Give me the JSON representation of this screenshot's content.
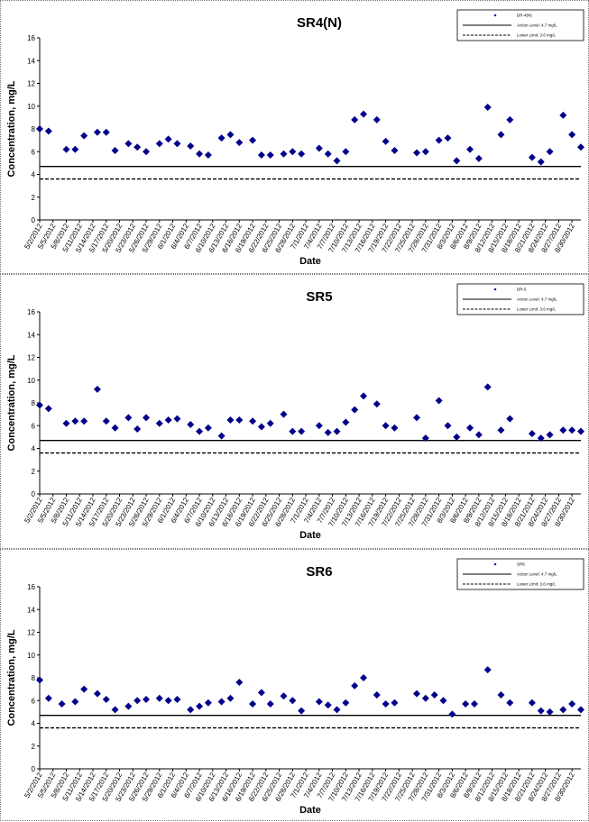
{
  "chart_data": [
    {
      "type": "scatter",
      "title": "SR4(N)",
      "xlabel": "Date",
      "ylabel": "Concentration, mg/L",
      "ylim": [
        0,
        16
      ],
      "yticks": [
        0,
        2,
        4,
        6,
        8,
        10,
        12,
        14,
        16
      ],
      "x_tick_labels": [
        "5/2/2012",
        "5/5/2012",
        "5/8/2012",
        "5/11/2012",
        "5/14/2012",
        "5/17/2012",
        "5/20/2012",
        "5/23/2012",
        "5/26/2012",
        "5/29/2012",
        "6/1/2012",
        "6/4/2012",
        "6/7/2012",
        "6/10/2012",
        "6/13/2012",
        "6/16/2012",
        "6/19/2012",
        "6/22/2012",
        "6/25/2012",
        "6/28/2012",
        "7/1/2012",
        "7/4/2012",
        "7/7/2012",
        "7/10/2012",
        "7/13/2012",
        "7/16/2012",
        "7/19/2012",
        "7/22/2012",
        "7/25/2012",
        "7/28/2012",
        "7/31/2012",
        "8/3/2012",
        "8/6/2012",
        "8/9/2012",
        "8/12/2012",
        "8/15/2012",
        "8/18/2012",
        "8/21/2012",
        "8/24/2012",
        "8/27/2012",
        "8/30/2012"
      ],
      "xlim": [
        "5/2/2012",
        "9/1/2012"
      ],
      "grid": false,
      "legend_position": "top-right",
      "legend": [
        {
          "label": "DR-4(N)",
          "style": "marker"
        },
        {
          "label": "Action Level: 4.7 mg/L",
          "style": "solid"
        },
        {
          "label": "Lower Limit: 3.6 mg/L",
          "style": "dashed"
        }
      ],
      "reference_lines": [
        {
          "label": "Action Level: 4.7 mg/L",
          "value": 4.7,
          "style": "solid"
        },
        {
          "label": "Lower Limit: 3.6 mg/L",
          "value": 3.6,
          "style": "dashed"
        }
      ],
      "series": [
        {
          "name": "DR-4(N)",
          "color": "#00008b",
          "x": [
            "5/2/2012",
            "5/4/2012",
            "5/8/2012",
            "5/10/2012",
            "5/12/2012",
            "5/15/2012",
            "5/17/2012",
            "5/19/2012",
            "5/22/2012",
            "5/24/2012",
            "5/26/2012",
            "5/29/2012",
            "5/31/2012",
            "6/2/2012",
            "6/5/2012",
            "6/7/2012",
            "6/9/2012",
            "6/12/2012",
            "6/14/2012",
            "6/16/2012",
            "6/19/2012",
            "6/21/2012",
            "6/23/2012",
            "6/26/2012",
            "6/28/2012",
            "6/30/2012",
            "7/4/2012",
            "7/6/2012",
            "7/8/2012",
            "7/10/2012",
            "7/12/2012",
            "7/14/2012",
            "7/17/2012",
            "7/19/2012",
            "7/21/2012",
            "7/26/2012",
            "7/28/2012",
            "7/31/2012",
            "8/2/2012",
            "8/4/2012",
            "8/7/2012",
            "8/9/2012",
            "8/11/2012",
            "8/14/2012",
            "8/16/2012",
            "8/21/2012",
            "8/23/2012",
            "8/25/2012",
            "8/28/2012",
            "8/30/2012",
            "9/1/2012"
          ],
          "y": [
            8.0,
            7.8,
            6.2,
            6.2,
            7.4,
            7.7,
            7.7,
            6.1,
            6.7,
            6.4,
            6.0,
            6.7,
            7.1,
            6.7,
            6.5,
            5.8,
            5.7,
            7.2,
            7.5,
            6.8,
            7.0,
            5.7,
            5.7,
            5.8,
            6.0,
            5.8,
            6.3,
            5.8,
            5.2,
            6.0,
            8.8,
            9.3,
            8.8,
            6.9,
            6.1,
            5.9,
            6.0,
            7.0,
            7.2,
            5.2,
            6.2,
            5.4,
            9.9,
            7.5,
            8.8,
            5.5,
            5.1,
            6.0,
            9.2,
            7.5,
            6.4
          ]
        }
      ]
    },
    {
      "type": "scatter",
      "title": "SR5",
      "xlabel": "Date",
      "ylabel": "Concentration, mg/L",
      "ylim": [
        0,
        16
      ],
      "yticks": [
        0,
        2,
        4,
        6,
        8,
        10,
        12,
        14,
        16
      ],
      "x_tick_labels": [
        "5/2/2012",
        "5/5/2012",
        "5/8/2012",
        "5/11/2012",
        "5/14/2012",
        "5/17/2012",
        "5/20/2012",
        "5/23/2012",
        "5/26/2012",
        "5/29/2012",
        "6/1/2012",
        "6/4/2012",
        "6/7/2012",
        "6/10/2012",
        "6/13/2012",
        "6/16/2012",
        "6/19/2012",
        "6/22/2012",
        "6/25/2012",
        "6/28/2012",
        "7/1/2012",
        "7/4/2012",
        "7/7/2012",
        "7/10/2012",
        "7/13/2012",
        "7/16/2012",
        "7/19/2012",
        "7/22/2012",
        "7/25/2012",
        "7/28/2012",
        "7/31/2012",
        "8/3/2012",
        "8/6/2012",
        "8/9/2012",
        "8/12/2012",
        "8/15/2012",
        "8/18/2012",
        "8/21/2012",
        "8/24/2012",
        "8/27/2012",
        "8/30/2012"
      ],
      "xlim": [
        "5/2/2012",
        "9/1/2012"
      ],
      "grid": false,
      "legend_position": "top-right",
      "legend": [
        {
          "label": "DR-5",
          "style": "marker"
        },
        {
          "label": "Action Level: 4.7 mg/L",
          "style": "solid"
        },
        {
          "label": "Lower Limit: 3.6 mg/L",
          "style": "dashed"
        }
      ],
      "reference_lines": [
        {
          "label": "Action Level: 4.7 mg/L",
          "value": 4.7,
          "style": "solid"
        },
        {
          "label": "Lower Limit: 3.6 mg/L",
          "value": 3.6,
          "style": "dashed"
        }
      ],
      "series": [
        {
          "name": "DR-5",
          "color": "#00008b",
          "x": [
            "5/2/2012",
            "5/4/2012",
            "5/8/2012",
            "5/10/2012",
            "5/12/2012",
            "5/15/2012",
            "5/17/2012",
            "5/19/2012",
            "5/22/2012",
            "5/24/2012",
            "5/26/2012",
            "5/29/2012",
            "5/31/2012",
            "6/2/2012",
            "6/5/2012",
            "6/7/2012",
            "6/9/2012",
            "6/12/2012",
            "6/14/2012",
            "6/16/2012",
            "6/19/2012",
            "6/21/2012",
            "6/23/2012",
            "6/26/2012",
            "6/28/2012",
            "6/30/2012",
            "7/4/2012",
            "7/6/2012",
            "7/8/2012",
            "7/10/2012",
            "7/12/2012",
            "7/14/2012",
            "7/17/2012",
            "7/19/2012",
            "7/21/2012",
            "7/26/2012",
            "7/28/2012",
            "7/31/2012",
            "8/2/2012",
            "8/4/2012",
            "8/7/2012",
            "8/9/2012",
            "8/11/2012",
            "8/14/2012",
            "8/16/2012",
            "8/21/2012",
            "8/23/2012",
            "8/25/2012",
            "8/28/2012",
            "8/30/2012",
            "9/1/2012"
          ],
          "y": [
            7.8,
            7.5,
            6.2,
            6.4,
            6.4,
            9.2,
            6.4,
            5.8,
            6.7,
            5.7,
            6.7,
            6.2,
            6.5,
            6.6,
            6.1,
            5.5,
            5.8,
            5.1,
            6.5,
            6.5,
            6.4,
            5.9,
            6.2,
            7.0,
            5.5,
            5.5,
            6.0,
            5.4,
            5.5,
            6.3,
            7.4,
            8.6,
            7.9,
            6.0,
            5.8,
            6.7,
            4.9,
            8.2,
            6.0,
            5.0,
            5.8,
            5.2,
            9.4,
            5.6,
            6.6,
            5.3,
            4.9,
            5.2,
            5.6,
            5.6,
            5.5
          ]
        }
      ]
    },
    {
      "type": "scatter",
      "title": "SR6",
      "xlabel": "Date",
      "ylabel": "Concentration, mg/L",
      "ylim": [
        0,
        16
      ],
      "yticks": [
        0,
        2,
        4,
        6,
        8,
        10,
        12,
        14,
        16
      ],
      "x_tick_labels": [
        "5/2/2012",
        "5/5/2012",
        "5/8/2012",
        "5/11/2012",
        "5/14/2012",
        "5/17/2012",
        "5/20/2012",
        "5/23/2012",
        "5/26/2012",
        "5/29/2012",
        "6/1/2012",
        "6/4/2012",
        "6/7/2012",
        "6/10/2012",
        "6/13/2012",
        "6/16/2012",
        "6/19/2012",
        "6/22/2012",
        "6/25/2012",
        "6/28/2012",
        "7/1/2012",
        "7/4/2012",
        "7/7/2012",
        "7/10/2012",
        "7/13/2012",
        "7/16/2012",
        "7/19/2012",
        "7/22/2012",
        "7/25/2012",
        "7/28/2012",
        "7/31/2012",
        "8/3/2012",
        "8/6/2012",
        "8/9/2012",
        "8/12/2012",
        "8/15/2012",
        "8/18/2012",
        "8/21/2012",
        "8/24/2012",
        "8/27/2012",
        "8/30/2012"
      ],
      "xlim": [
        "5/2/2012",
        "9/1/2012"
      ],
      "grid": false,
      "legend_position": "top-right",
      "legend": [
        {
          "label": "SR6",
          "style": "marker"
        },
        {
          "label": "Action Level: 4.7 mg/L",
          "style": "solid"
        },
        {
          "label": "Lower Limit: 3.6 mg/L",
          "style": "dashed"
        }
      ],
      "reference_lines": [
        {
          "label": "Action Level: 4.7 mg/L",
          "value": 4.7,
          "style": "solid"
        },
        {
          "label": "Lower Limit: 3.6 mg/L",
          "value": 3.6,
          "style": "dashed"
        }
      ],
      "series": [
        {
          "name": "SR6",
          "color": "#00008b",
          "x": [
            "5/2/2012",
            "5/4/2012",
            "5/7/2012",
            "5/10/2012",
            "5/12/2012",
            "5/15/2012",
            "5/17/2012",
            "5/19/2012",
            "5/22/2012",
            "5/24/2012",
            "5/26/2012",
            "5/29/2012",
            "5/31/2012",
            "6/2/2012",
            "6/5/2012",
            "6/7/2012",
            "6/9/2012",
            "6/12/2012",
            "6/14/2012",
            "6/16/2012",
            "6/19/2012",
            "6/21/2012",
            "6/23/2012",
            "6/26/2012",
            "6/28/2012",
            "6/30/2012",
            "7/4/2012",
            "7/6/2012",
            "7/8/2012",
            "7/10/2012",
            "7/12/2012",
            "7/14/2012",
            "7/17/2012",
            "7/19/2012",
            "7/21/2012",
            "7/26/2012",
            "7/28/2012",
            "7/30/2012",
            "8/1/2012",
            "8/3/2012",
            "8/6/2012",
            "8/8/2012",
            "8/11/2012",
            "8/14/2012",
            "8/16/2012",
            "8/21/2012",
            "8/23/2012",
            "8/25/2012",
            "8/28/2012",
            "8/30/2012",
            "9/1/2012"
          ],
          "y": [
            7.8,
            6.2,
            5.7,
            5.9,
            7.0,
            6.6,
            6.1,
            5.2,
            5.5,
            6.0,
            6.1,
            6.2,
            6.0,
            6.1,
            5.2,
            5.5,
            5.8,
            5.9,
            6.2,
            7.6,
            5.7,
            6.7,
            5.7,
            6.4,
            6.0,
            5.1,
            5.9,
            5.6,
            5.2,
            5.8,
            7.3,
            8.0,
            6.5,
            5.7,
            5.8,
            6.6,
            6.2,
            6.5,
            6.0,
            4.8,
            5.7,
            5.7,
            8.7,
            6.5,
            5.8,
            5.8,
            5.1,
            5.0,
            5.2,
            5.7,
            5.2
          ]
        }
      ]
    }
  ]
}
